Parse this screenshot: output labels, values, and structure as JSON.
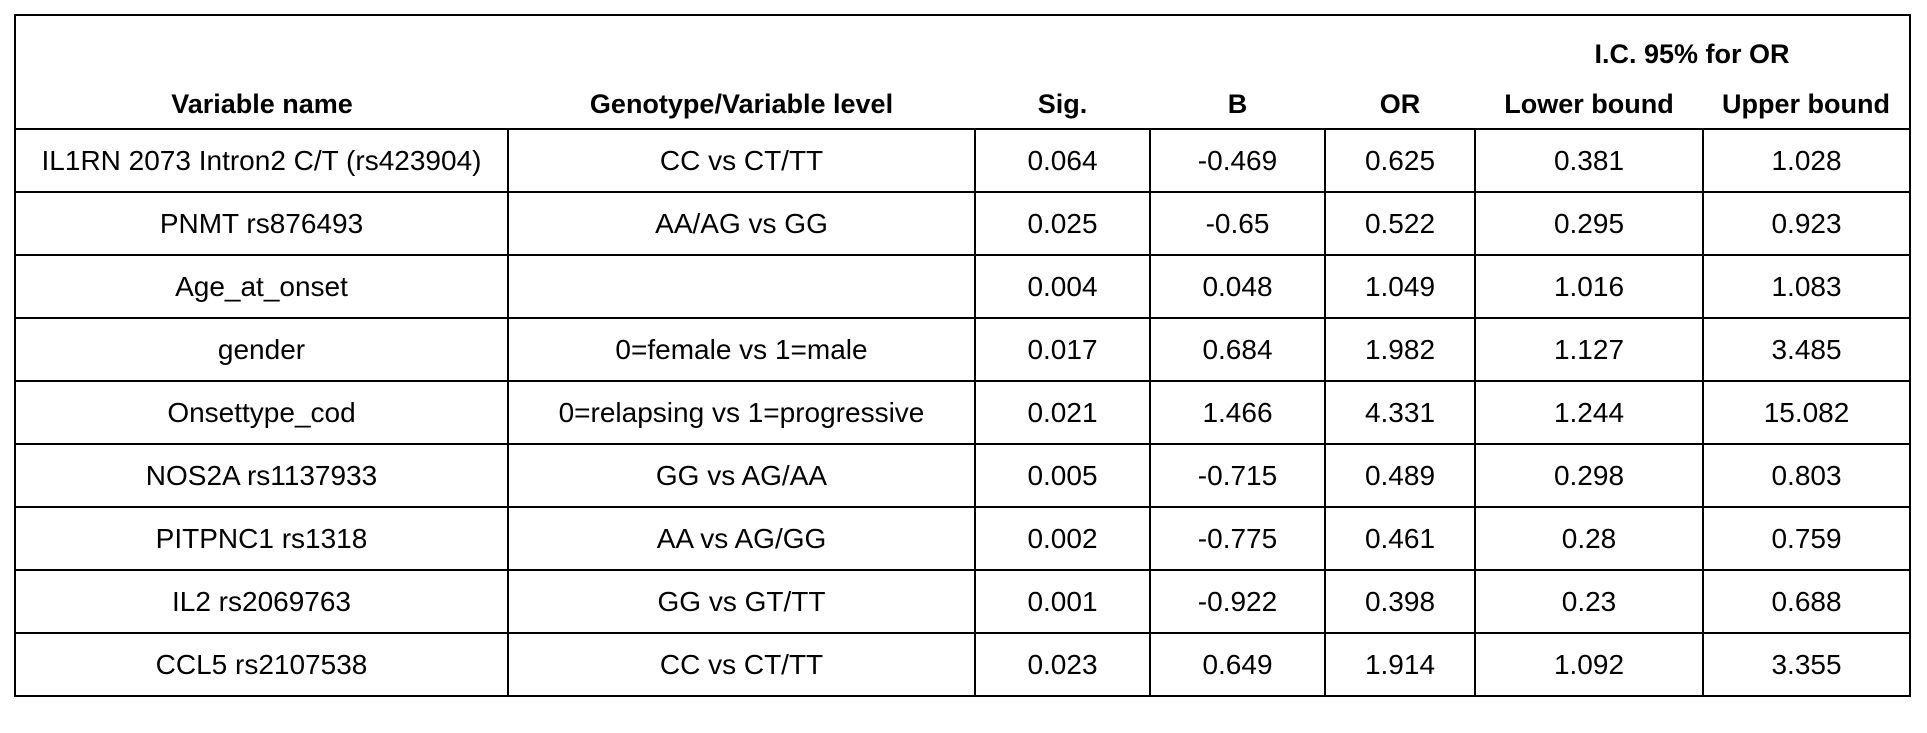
{
  "table": {
    "group_header": "I.C. 95% for OR",
    "columns": [
      "Variable name",
      "Genotype/Variable level",
      "Sig.",
      "B",
      "OR",
      "Lower bound",
      "Upper bound"
    ],
    "rows": [
      [
        "IL1RN 2073 Intron2 C/T (rs423904)",
        "CC vs CT/TT",
        "0.064",
        "-0.469",
        "0.625",
        "0.381",
        "1.028"
      ],
      [
        "PNMT rs876493",
        "AA/AG vs GG",
        "0.025",
        "-0.65",
        "0.522",
        "0.295",
        "0.923"
      ],
      [
        "Age_at_onset",
        "",
        "0.004",
        "0.048",
        "1.049",
        "1.016",
        "1.083"
      ],
      [
        "gender",
        "0=female vs 1=male",
        "0.017",
        "0.684",
        "1.982",
        "1.127",
        "3.485"
      ],
      [
        "Onsettype_cod",
        "0=relapsing vs 1=progressive",
        "0.021",
        "1.466",
        "4.331",
        "1.244",
        "15.082"
      ],
      [
        "NOS2A rs1137933",
        "GG vs AG/AA",
        "0.005",
        "-0.715",
        "0.489",
        "0.298",
        "0.803"
      ],
      [
        "PITPNC1 rs1318",
        "AA vs AG/GG",
        "0.002",
        "-0.775",
        "0.461",
        "0.28",
        "0.759"
      ],
      [
        "IL2 rs2069763",
        "GG vs GT/TT",
        "0.001",
        "-0.922",
        "0.398",
        "0.23",
        "0.688"
      ],
      [
        "CCL5 rs2107538",
        "CC vs CT/TT",
        "0.023",
        "0.649",
        "1.914",
        "1.092",
        "3.355"
      ]
    ]
  }
}
